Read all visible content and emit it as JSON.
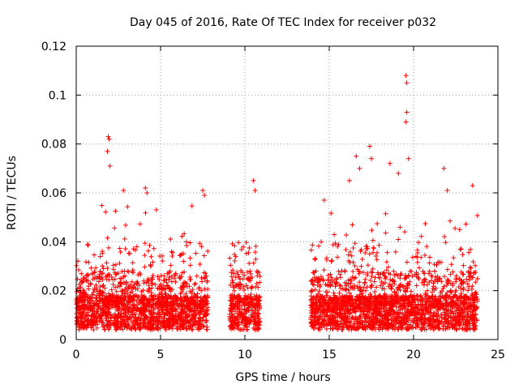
{
  "chart_data": {
    "type": "scatter",
    "title": "Day 045 of 2016, Rate Of TEC Index for receiver p032",
    "xlabel": "GPS time / hours",
    "ylabel": "ROTI / TECUs",
    "xlim": [
      0,
      25
    ],
    "ylim": [
      0,
      0.12
    ],
    "x_ticks": [
      0,
      5,
      10,
      15,
      20,
      25
    ],
    "y_ticks": [
      0,
      0.02,
      0.04,
      0.06,
      0.08,
      0.1,
      0.12
    ],
    "x_tick_labels": [
      "0",
      "5",
      "10",
      "15",
      "20",
      "25"
    ],
    "y_tick_labels": [
      "0",
      "0.02",
      "0.04",
      "0.06",
      "0.08",
      "0.1",
      "0.12"
    ],
    "grid": true,
    "marker": "+",
    "marker_color": "#ff0000",
    "series": [
      {
        "name": "p032",
        "segments": [
          {
            "start": 0.0,
            "end": 7.8
          },
          {
            "start": 9.1,
            "end": 10.9
          },
          {
            "start": 13.9,
            "end": 23.8
          }
        ],
        "notable_points": [
          {
            "x": 1.9,
            "y": 0.083
          },
          {
            "x": 1.95,
            "y": 0.082
          },
          {
            "x": 1.85,
            "y": 0.077
          },
          {
            "x": 2.0,
            "y": 0.071
          },
          {
            "x": 2.8,
            "y": 0.061
          },
          {
            "x": 4.1,
            "y": 0.062
          },
          {
            "x": 4.2,
            "y": 0.06
          },
          {
            "x": 7.5,
            "y": 0.061
          },
          {
            "x": 7.6,
            "y": 0.059
          },
          {
            "x": 10.5,
            "y": 0.065
          },
          {
            "x": 10.6,
            "y": 0.061
          },
          {
            "x": 14.7,
            "y": 0.057
          },
          {
            "x": 16.2,
            "y": 0.065
          },
          {
            "x": 16.6,
            "y": 0.075
          },
          {
            "x": 16.8,
            "y": 0.07
          },
          {
            "x": 17.4,
            "y": 0.079
          },
          {
            "x": 17.5,
            "y": 0.074
          },
          {
            "x": 18.6,
            "y": 0.072
          },
          {
            "x": 19.1,
            "y": 0.068
          },
          {
            "x": 19.55,
            "y": 0.108
          },
          {
            "x": 19.6,
            "y": 0.105
          },
          {
            "x": 19.6,
            "y": 0.093
          },
          {
            "x": 19.55,
            "y": 0.089
          },
          {
            "x": 19.7,
            "y": 0.074
          },
          {
            "x": 21.8,
            "y": 0.07
          },
          {
            "x": 22.0,
            "y": 0.061
          },
          {
            "x": 23.5,
            "y": 0.063
          }
        ]
      }
    ]
  }
}
